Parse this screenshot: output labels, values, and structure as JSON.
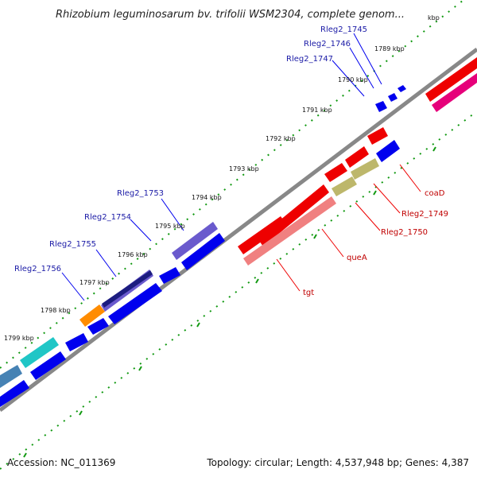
{
  "header": {
    "title": "Rhizobium leguminosarum bv. trifolii WSM2304, complete genom...",
    "title_overflow": "kbp"
  },
  "footer": {
    "accession": "Accession: NC_011369",
    "summary": "Topology: circular; Length: 4,537,948 bp; Genes: 4,387"
  },
  "ticks": [
    "1789 kbp",
    "1790 kbp",
    "1791 kbp",
    "1792 kbp",
    "1793 kbp",
    "1794 kbp",
    "1795 kbp",
    "1796 kbp",
    "1797 kbp",
    "1798 kbp",
    "1799 kbp"
  ],
  "forward_labels": [
    "Rleg2_1745",
    "Rleg2_1746",
    "Rleg2_1747",
    "Rleg2_1753",
    "Rleg2_1754",
    "Rleg2_1755",
    "Rleg2_1756"
  ],
  "reverse_labels": [
    "coaD",
    "Rleg2_1749",
    "Rleg2_1750",
    "queA",
    "tgt"
  ],
  "colors": {
    "forward_gene": "#0000ee",
    "reverse_gene": "#ee0000",
    "backbone": "#888888",
    "tick": "#119911",
    "forward_label": "#1a1aa6",
    "reverse_label": "#c00000",
    "tgt_gene": "#f08080",
    "olive_gene": "#bdb76b",
    "magenta_gene": "#e6007a",
    "purple_gene": "#6a5acd",
    "navy_gene": "#1c1c80",
    "orange_gene": "#ff8c00",
    "cyan_gene": "#20c6c6",
    "steel_gene": "#4682b4"
  }
}
